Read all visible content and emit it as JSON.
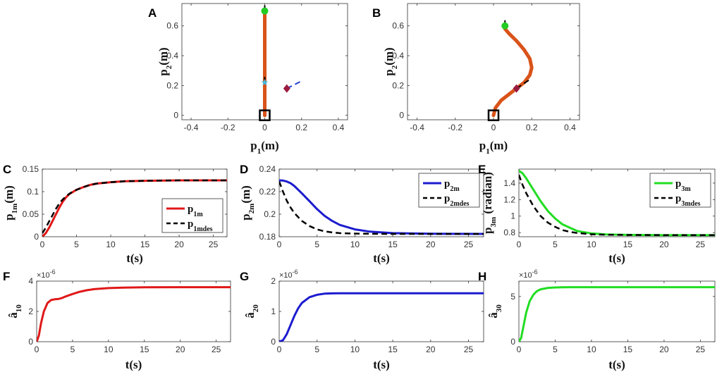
{
  "chart_data": [
    {
      "id": "A",
      "type": "line",
      "panel_label": "A",
      "xlabel": "p",
      "xlabel_sub": "1",
      "xlabel_unit": "(m)",
      "ylabel": "p",
      "ylabel_sub": "2",
      "ylabel_unit": "(m)",
      "xlim": [
        -0.45,
        0.45
      ],
      "ylim": [
        -0.03,
        0.75
      ],
      "xticks": [
        -0.4,
        -0.2,
        0,
        0.2,
        0.4
      ],
      "xtick_labels": [
        "-0.4",
        "-0.2",
        "0",
        "0.2",
        "0.4"
      ],
      "yticks": [
        0,
        0.2,
        0.4,
        0.6
      ],
      "ytick_labels": [
        "0",
        "0.2",
        "0.4",
        "0.6"
      ],
      "series": [
        {
          "name": "body",
          "color": "#d95319",
          "style": "solid",
          "width": 5,
          "x": [
            0,
            0
          ],
          "y": [
            0,
            0.7
          ]
        },
        {
          "name": "tip-heading",
          "color": "#000000",
          "style": "dashed",
          "width": 2,
          "x": [
            0,
            0
          ],
          "y": [
            0.7,
            0.75
          ]
        },
        {
          "name": "mid-heading",
          "color": "#000000",
          "style": "dashed",
          "width": 2,
          "x": [
            0,
            0
          ],
          "y": [
            0.22,
            0.28
          ]
        },
        {
          "name": "object-heading",
          "color": "#1f3fcf",
          "style": "dashed",
          "width": 2,
          "x": [
            0.12,
            0.2
          ],
          "y": [
            0.18,
            0.23
          ]
        }
      ],
      "markers": [
        {
          "name": "tip",
          "shape": "circle",
          "color": "#22cc22",
          "x": 0,
          "y": 0.7
        },
        {
          "name": "mid",
          "shape": "star",
          "color": "#44bbdd",
          "x": 0,
          "y": 0.22
        },
        {
          "name": "object",
          "shape": "diamond",
          "color": "#9b1b3f",
          "x": 0.12,
          "y": 0.18
        },
        {
          "name": "base",
          "shape": "square",
          "color": "#000000",
          "x": 0,
          "y": 0
        }
      ]
    },
    {
      "id": "B",
      "type": "line",
      "panel_label": "B",
      "xlabel": "p",
      "xlabel_sub": "1",
      "xlabel_unit": "(m)",
      "ylabel": "p",
      "ylabel_sub": "2",
      "ylabel_unit": "(m)",
      "xlim": [
        -0.45,
        0.45
      ],
      "ylim": [
        -0.03,
        0.75
      ],
      "xticks": [
        -0.4,
        -0.2,
        0,
        0.2,
        0.4
      ],
      "xtick_labels": [
        "-0.4",
        "-0.2",
        "0",
        "0.2",
        "0.4"
      ],
      "yticks": [
        0,
        0.2,
        0.4,
        0.6
      ],
      "ytick_labels": [
        "0",
        "0.2",
        "0.4",
        "0.6"
      ],
      "series": [
        {
          "name": "body",
          "color": "#d95319",
          "style": "solid",
          "width": 5,
          "x": [
            0,
            0.01,
            0.04,
            0.08,
            0.12,
            0.16,
            0.19,
            0.2,
            0.19,
            0.16,
            0.12,
            0.08,
            0.06,
            0.06
          ],
          "y": [
            0,
            0.05,
            0.1,
            0.14,
            0.18,
            0.22,
            0.27,
            0.32,
            0.38,
            0.44,
            0.5,
            0.55,
            0.58,
            0.6
          ]
        },
        {
          "name": "tip-heading",
          "color": "#000000",
          "style": "dashed",
          "width": 2,
          "x": [
            0.06,
            0.06
          ],
          "y": [
            0.6,
            0.66
          ]
        },
        {
          "name": "mid-heading",
          "color": "#000000",
          "style": "dashed",
          "width": 2,
          "x": [
            0.12,
            0.19
          ],
          "y": [
            0.18,
            0.24
          ]
        }
      ],
      "markers": [
        {
          "name": "tip",
          "shape": "circle",
          "color": "#22cc22",
          "x": 0.06,
          "y": 0.6
        },
        {
          "name": "mid",
          "shape": "star",
          "color": "#44bbdd",
          "x": 0.12,
          "y": 0.18
        },
        {
          "name": "object",
          "shape": "diamond",
          "color": "#9b1b3f",
          "x": 0.12,
          "y": 0.18
        },
        {
          "name": "base",
          "shape": "square",
          "color": "#000000",
          "x": 0,
          "y": 0
        }
      ]
    },
    {
      "id": "C",
      "type": "line",
      "panel_label": "C",
      "xlabel": "t(s)",
      "ylabel": "p",
      "ylabel_sub": "1m",
      "ylabel_unit": "(m)",
      "xlim": [
        0,
        27
      ],
      "ylim": [
        0,
        0.15
      ],
      "xticks": [
        0,
        5,
        10,
        15,
        20,
        25
      ],
      "xtick_labels": [
        "0",
        "5",
        "10",
        "15",
        "20",
        "25"
      ],
      "yticks": [
        0,
        0.05,
        0.1,
        0.15
      ],
      "ytick_labels": [
        "0",
        "0.05",
        "0.1",
        "0.15"
      ],
      "legend": {
        "position": "bottom-right"
      },
      "series": [
        {
          "name": "p",
          "name_sub": "1m",
          "color": "#e01818",
          "style": "solid",
          "width": 3,
          "x": [
            0,
            0.5,
            1,
            1.5,
            2,
            2.5,
            3,
            3.5,
            4,
            5,
            6,
            7,
            8,
            10,
            12,
            15,
            20,
            27
          ],
          "y": [
            0,
            0.008,
            0.02,
            0.035,
            0.05,
            0.065,
            0.078,
            0.088,
            0.095,
            0.104,
            0.11,
            0.115,
            0.118,
            0.121,
            0.123,
            0.124,
            0.125,
            0.125
          ]
        },
        {
          "name": "p",
          "name_sub": "1mdes",
          "color": "#000000",
          "style": "dashed",
          "width": 2.5,
          "x": [
            0,
            0.5,
            1,
            1.5,
            2,
            2.5,
            3,
            3.5,
            4,
            5,
            6,
            7,
            8,
            10,
            12,
            15,
            20,
            27
          ],
          "y": [
            0.008,
            0.02,
            0.034,
            0.048,
            0.062,
            0.074,
            0.083,
            0.09,
            0.096,
            0.104,
            0.11,
            0.115,
            0.118,
            0.121,
            0.123,
            0.124,
            0.125,
            0.125
          ]
        }
      ]
    },
    {
      "id": "D",
      "type": "line",
      "panel_label": "D",
      "xlabel": "t(s)",
      "ylabel": "p",
      "ylabel_sub": "2m",
      "ylabel_unit": "(m)",
      "xlim": [
        0,
        27
      ],
      "ylim": [
        0.18,
        0.24
      ],
      "xticks": [
        0,
        5,
        10,
        15,
        20,
        25
      ],
      "xtick_labels": [
        "0",
        "5",
        "10",
        "15",
        "20",
        "25"
      ],
      "yticks": [
        0.18,
        0.2,
        0.22,
        0.24
      ],
      "ytick_labels": [
        "0.18",
        "0.2",
        "0.22",
        "0.24"
      ],
      "legend": {
        "position": "top-right"
      },
      "series": [
        {
          "name": "p",
          "name_sub": "2m",
          "color": "#1c1ccf",
          "style": "solid",
          "width": 3,
          "x": [
            0,
            0.5,
            1,
            1.5,
            2,
            3,
            4,
            5,
            6,
            7,
            8,
            10,
            12,
            15,
            20,
            27
          ],
          "y": [
            0.23,
            0.2298,
            0.229,
            0.2275,
            0.225,
            0.2185,
            0.2115,
            0.2045,
            0.1985,
            0.194,
            0.1905,
            0.1865,
            0.1845,
            0.1832,
            0.1826,
            0.1825
          ]
        },
        {
          "name": "p",
          "name_sub": "2mdes",
          "color": "#000000",
          "style": "dashed",
          "width": 2.5,
          "x": [
            0,
            0.5,
            1,
            1.5,
            2,
            3,
            4,
            5,
            6,
            7,
            8,
            10,
            12,
            15,
            20,
            27
          ],
          "y": [
            0.229,
            0.22,
            0.212,
            0.206,
            0.201,
            0.194,
            0.1895,
            0.1865,
            0.1848,
            0.1838,
            0.1832,
            0.1828,
            0.1826,
            0.1825,
            0.1825,
            0.1825
          ]
        }
      ]
    },
    {
      "id": "E",
      "type": "line",
      "panel_label": "E",
      "xlabel": "t(s)",
      "ylabel": "p",
      "ylabel_sub": "3m",
      "ylabel_unit": " (radian)",
      "xlim": [
        0,
        27
      ],
      "ylim": [
        0.75,
        1.57
      ],
      "xticks": [
        0,
        5,
        10,
        15,
        20,
        25
      ],
      "xtick_labels": [
        "0",
        "5",
        "10",
        "15",
        "20",
        "25"
      ],
      "yticks": [
        0.8,
        1,
        1.2,
        1.4
      ],
      "ytick_labels": [
        "0.8",
        "1",
        "1.2",
        "1.4"
      ],
      "legend": {
        "position": "top-right"
      },
      "series": [
        {
          "name": "p",
          "name_sub": "3m",
          "color": "#22dd22",
          "style": "solid",
          "width": 3,
          "x": [
            0,
            0.5,
            1,
            2,
            3,
            4,
            5,
            6,
            7,
            8,
            10,
            12,
            15,
            20,
            27
          ],
          "y": [
            1.55,
            1.52,
            1.46,
            1.32,
            1.18,
            1.06,
            0.97,
            0.9,
            0.86,
            0.82,
            0.79,
            0.778,
            0.772,
            0.77,
            0.77
          ]
        },
        {
          "name": "p",
          "name_sub": "3mdes",
          "color": "#000000",
          "style": "dashed",
          "width": 2.5,
          "x": [
            0,
            0.5,
            1,
            2,
            3,
            4,
            5,
            6,
            7,
            8,
            10,
            12,
            15,
            20,
            27
          ],
          "y": [
            1.5,
            1.38,
            1.28,
            1.12,
            1.0,
            0.92,
            0.87,
            0.83,
            0.81,
            0.795,
            0.78,
            0.774,
            0.771,
            0.77,
            0.77
          ]
        }
      ]
    },
    {
      "id": "F",
      "type": "line",
      "panel_label": "F",
      "xlabel": "t(s)",
      "ylabel": "â",
      "ylabel_sub": "10",
      "exponent_label": "×10",
      "exponent_power": "-6",
      "xlim": [
        0,
        27
      ],
      "ylim": [
        0,
        4
      ],
      "xticks": [
        0,
        5,
        10,
        15,
        20,
        25
      ],
      "xtick_labels": [
        "0",
        "5",
        "10",
        "15",
        "20",
        "25"
      ],
      "yticks": [
        0,
        2,
        4
      ],
      "ytick_labels": [
        "0",
        "2",
        "4"
      ],
      "series": [
        {
          "name": "a10",
          "color": "#e01818",
          "style": "solid",
          "width": 3,
          "x": [
            0,
            0.3,
            0.6,
            1,
            1.5,
            2,
            2.5,
            3,
            3.5,
            4,
            5,
            6,
            7,
            8,
            10,
            12,
            15,
            20,
            27
          ],
          "y": [
            0,
            0.4,
            1.2,
            2.0,
            2.55,
            2.75,
            2.8,
            2.82,
            2.88,
            2.98,
            3.15,
            3.3,
            3.4,
            3.47,
            3.54,
            3.57,
            3.59,
            3.6,
            3.6
          ]
        }
      ]
    },
    {
      "id": "G",
      "type": "line",
      "panel_label": "G",
      "xlabel": "t(s)",
      "ylabel": "â",
      "ylabel_sub": "20",
      "exponent_label": "×10",
      "exponent_power": "-6",
      "xlim": [
        0,
        27
      ],
      "ylim": [
        0,
        2
      ],
      "xticks": [
        0,
        5,
        10,
        15,
        20,
        25
      ],
      "xtick_labels": [
        "0",
        "5",
        "10",
        "15",
        "20",
        "25"
      ],
      "yticks": [
        0,
        1,
        2
      ],
      "ytick_labels": [
        "0",
        "1",
        "2"
      ],
      "series": [
        {
          "name": "a20",
          "color": "#1c1ccf",
          "style": "solid",
          "width": 3,
          "x": [
            0,
            0.5,
            1,
            1.5,
            2,
            2.5,
            3,
            4,
            5,
            6,
            7,
            8,
            10,
            15,
            20,
            27
          ],
          "y": [
            0,
            0.05,
            0.25,
            0.55,
            0.85,
            1.1,
            1.28,
            1.47,
            1.55,
            1.585,
            1.595,
            1.6,
            1.6,
            1.6,
            1.6,
            1.6
          ]
        }
      ]
    },
    {
      "id": "H",
      "type": "line",
      "panel_label": "H",
      "xlabel": "t(s)",
      "ylabel": "â",
      "ylabel_sub": "30",
      "exponent_label": "×10",
      "exponent_power": "-6",
      "xlim": [
        0,
        27
      ],
      "ylim": [
        0,
        6.7
      ],
      "xticks": [
        0,
        5,
        10,
        15,
        20,
        25
      ],
      "xtick_labels": [
        "0",
        "5",
        "10",
        "15",
        "20",
        "25"
      ],
      "yticks": [
        0,
        5
      ],
      "ytick_labels": [
        "0",
        "5"
      ],
      "series": [
        {
          "name": "a30",
          "color": "#22dd22",
          "style": "solid",
          "width": 3,
          "x": [
            0,
            0.3,
            0.6,
            1,
            1.5,
            2,
            2.5,
            3,
            4,
            5,
            6,
            7,
            8,
            10,
            15,
            20,
            27
          ],
          "y": [
            0,
            0.4,
            1.6,
            3.2,
            4.5,
            5.2,
            5.6,
            5.8,
            5.95,
            6.0,
            6.02,
            6.03,
            6.03,
            6.03,
            6.03,
            6.03,
            6.03
          ]
        }
      ]
    }
  ]
}
